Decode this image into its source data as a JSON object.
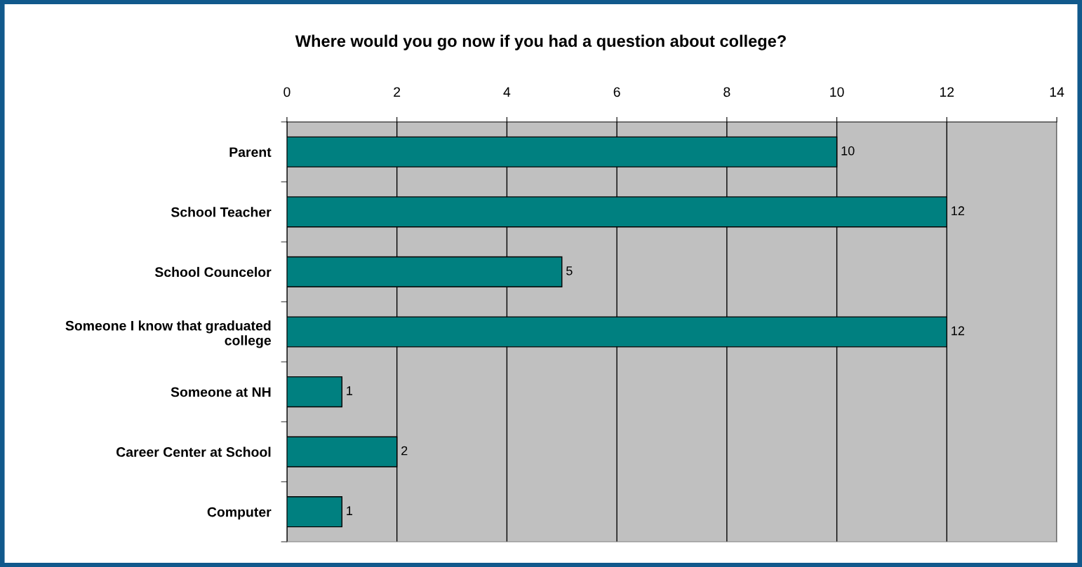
{
  "chart_data": {
    "type": "bar",
    "orientation": "horizontal",
    "title": "Where would you go now if you had a question about college?",
    "categories": [
      "Parent",
      "School Teacher",
      "School Councelor",
      "Someone I know that graduated college",
      "Someone at NH",
      "Career Center at School",
      "Computer"
    ],
    "values": [
      10,
      12,
      5,
      12,
      1,
      2,
      1
    ],
    "color": "#008080",
    "xlim": [
      0,
      14
    ],
    "xticks": [
      0,
      2,
      4,
      6,
      8,
      10,
      12,
      14
    ],
    "grid": "x",
    "data_labels": true
  }
}
